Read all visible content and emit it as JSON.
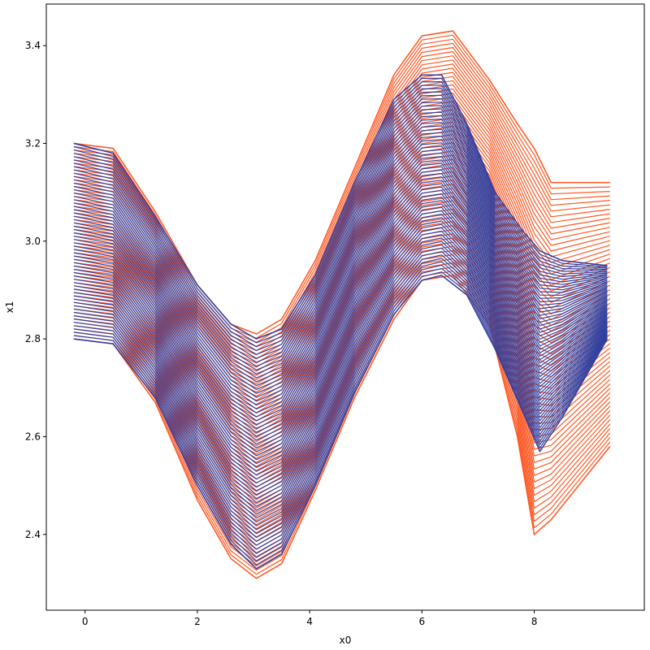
{
  "chart_data": {
    "type": "line",
    "title": "",
    "xlabel": "x0",
    "ylabel": "x1",
    "xlim": [
      -0.69,
      9.96
    ],
    "ylim": [
      2.245,
      3.485
    ],
    "xticks": [
      0,
      2,
      4,
      6,
      8
    ],
    "yticks": [
      2.4,
      2.6,
      2.8,
      3.0,
      3.2,
      3.4
    ],
    "grid": false,
    "legend": "none",
    "series": [
      {
        "color": "#ff5722",
        "trajectories": 60,
        "x": [
          -0.2,
          0.5,
          1.25,
          2.0,
          2.6,
          3.05,
          3.5,
          4.1,
          4.8,
          5.5,
          6.0,
          6.55,
          7.2,
          7.7,
          8.0,
          8.3,
          9.35
        ],
        "y_upper": [
          3.2,
          3.19,
          3.06,
          2.91,
          2.83,
          2.81,
          2.84,
          2.96,
          3.15,
          3.34,
          3.42,
          3.43,
          3.33,
          3.24,
          3.19,
          3.12,
          3.12
        ],
        "y_lower": [
          2.8,
          2.79,
          2.67,
          2.47,
          2.35,
          2.31,
          2.34,
          2.49,
          2.68,
          2.84,
          2.92,
          2.93,
          2.83,
          2.6,
          2.4,
          2.43,
          2.58
        ]
      },
      {
        "color": "#303f9f",
        "trajectories": 60,
        "x": [
          -0.2,
          0.5,
          1.25,
          2.0,
          2.6,
          3.05,
          3.5,
          4.1,
          4.8,
          5.5,
          6.0,
          6.35,
          6.8,
          7.3,
          7.8,
          8.1,
          8.5,
          9.3
        ],
        "y_upper": [
          3.2,
          3.18,
          3.05,
          2.91,
          2.83,
          2.8,
          2.82,
          2.93,
          3.12,
          3.29,
          3.34,
          3.34,
          3.24,
          3.1,
          3.02,
          2.98,
          2.96,
          2.95
        ],
        "y_lower": [
          2.8,
          2.79,
          2.68,
          2.5,
          2.38,
          2.33,
          2.36,
          2.5,
          2.69,
          2.85,
          2.92,
          2.93,
          2.89,
          2.78,
          2.65,
          2.57,
          2.64,
          2.8
        ]
      }
    ]
  }
}
